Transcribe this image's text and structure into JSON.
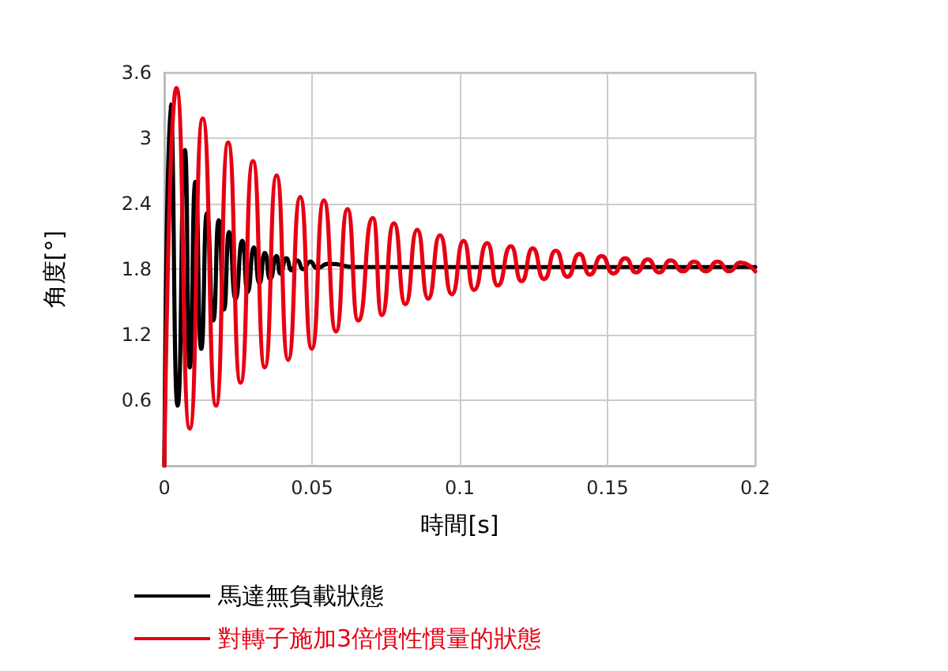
{
  "chart_data": {
    "type": "line",
    "xlabel": "時間[s]",
    "ylabel": "角度[°]",
    "xlim": [
      0,
      0.2
    ],
    "xticks": [
      0,
      0.05,
      0.1,
      0.15,
      0.2
    ],
    "ylim": [
      0,
      3.6
    ],
    "yticks": [
      0.6,
      1.2,
      1.8,
      2.4,
      3,
      3.6
    ],
    "grid": true,
    "legend": "bottom",
    "marker": "none",
    "line_style": "solid",
    "series": [
      {
        "name": "馬達無負載狀態",
        "color": "#000000",
        "x": [
          0,
          0.002,
          0.0045,
          0.007,
          0.0086,
          0.0105,
          0.0125,
          0.0144,
          0.0166,
          0.0184,
          0.0202,
          0.0219,
          0.0241,
          0.0264,
          0.0282,
          0.0303,
          0.0322,
          0.034,
          0.0358,
          0.038,
          0.0392,
          0.0413,
          0.043,
          0.045,
          0.047,
          0.0494,
          0.0516,
          0.0556,
          0.065,
          0.1,
          0.15,
          0.2
        ],
        "values": [
          0,
          3.31,
          0.55,
          2.89,
          0.9,
          2.6,
          1.07,
          2.31,
          1.33,
          2.25,
          1.43,
          2.14,
          1.53,
          2.06,
          1.59,
          2.0,
          1.67,
          1.95,
          1.71,
          1.92,
          1.76,
          1.9,
          1.79,
          1.88,
          1.8,
          1.87,
          1.81,
          1.85,
          1.82,
          1.82,
          1.82,
          1.82
        ]
      },
      {
        "name": "對轉子施加3倍慣性慣量的狀態",
        "color": "#e60012",
        "x": [
          0,
          0.0041,
          0.0086,
          0.013,
          0.0175,
          0.0216,
          0.0258,
          0.03,
          0.034,
          0.038,
          0.0419,
          0.046,
          0.0499,
          0.054,
          0.0581,
          0.062,
          0.0656,
          0.0706,
          0.0736,
          0.0777,
          0.0816,
          0.0856,
          0.0893,
          0.0933,
          0.0973,
          0.1013,
          0.1048,
          0.1093,
          0.1128,
          0.1173,
          0.1209,
          0.1247,
          0.1285,
          0.1325,
          0.1364,
          0.1405,
          0.144,
          0.148,
          0.152,
          0.156,
          0.1597,
          0.1636,
          0.1675,
          0.1713,
          0.1756,
          0.1793,
          0.1833,
          0.1872,
          0.1913,
          0.1949,
          0.2
        ],
        "values": [
          0,
          3.46,
          0.34,
          3.18,
          0.55,
          2.96,
          0.76,
          2.79,
          0.9,
          2.66,
          0.97,
          2.46,
          1.07,
          2.43,
          1.23,
          2.35,
          1.33,
          2.27,
          1.38,
          2.22,
          1.48,
          2.16,
          1.53,
          2.11,
          1.57,
          2.06,
          1.61,
          2.04,
          1.65,
          2.01,
          1.69,
          1.99,
          1.71,
          1.97,
          1.73,
          1.94,
          1.75,
          1.92,
          1.76,
          1.9,
          1.77,
          1.89,
          1.77,
          1.88,
          1.78,
          1.87,
          1.78,
          1.87,
          1.78,
          1.86,
          1.78
        ]
      }
    ]
  }
}
